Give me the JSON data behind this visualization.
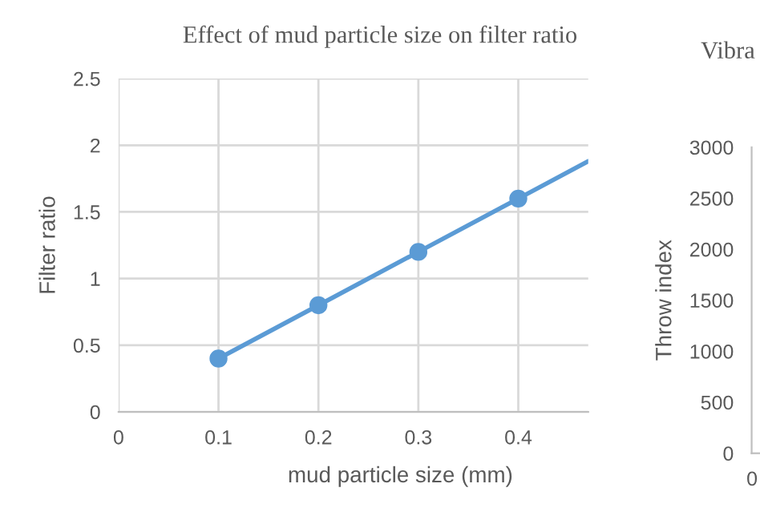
{
  "chart_data": [
    {
      "type": "line",
      "title": "Effect of mud particle size on filter ratio",
      "xlabel": "mud particle size (mm)",
      "ylabel": "Filter ratio",
      "xlim": [
        0,
        0.47
      ],
      "xticks": [
        0,
        0.1,
        0.2,
        0.3,
        0.4
      ],
      "ylim": [
        0,
        2.5
      ],
      "yticks": [
        0,
        0.5,
        1,
        1.5,
        2,
        2.5
      ],
      "grid": true,
      "series": [
        {
          "color": "#5b9bd5",
          "marker": "none",
          "x": [
            0.1,
            0.2,
            0.3,
            0.4,
            0.47
          ],
          "values": [
            0.4,
            0.8,
            1.2,
            1.6,
            1.88
          ]
        },
        {
          "type": "scatter",
          "color": "#5b9bd5",
          "marker": "circle",
          "x": [
            0.1,
            0.2,
            0.3,
            0.4
          ],
          "values": [
            0.4,
            0.8,
            1.2,
            1.6
          ]
        }
      ]
    },
    {
      "type": "line",
      "title": "Vibra",
      "ylabel": "Throw index",
      "ylim": [
        0,
        3000
      ],
      "yticks": [
        0,
        500,
        1000,
        1500,
        2000,
        2500,
        3000
      ],
      "categories": [
        "0"
      ]
    }
  ]
}
